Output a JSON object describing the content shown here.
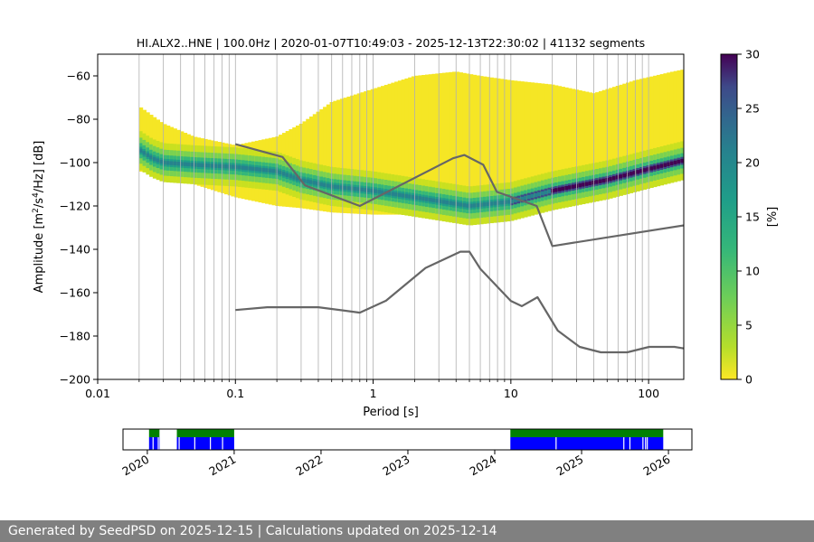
{
  "footer": {
    "text": "Generated by SeedPSD on 2025-12-15 | Calculations updated on 2025-12-14"
  },
  "chart_data": [
    {
      "type": "heatmap",
      "title": "HI.ALX2..HNE | 100.0Hz | 2020-01-07T10:49:03 - 2025-12-13T22:30:02 | 41132 segments",
      "xlabel": "Period [s]",
      "ylabel_parts": [
        "Amplitude [m",
        "2",
        "/s",
        "4",
        "/Hz] [dB]"
      ],
      "xscale": "log",
      "xlim": [
        0.01,
        180
      ],
      "ylim": [
        -200,
        -50
      ],
      "x_ticks": [
        0.01,
        0.1,
        1,
        10,
        100
      ],
      "x_tick_labels": [
        "0.01",
        "0.1",
        "1",
        "10",
        "100"
      ],
      "y_ticks": [
        -200,
        -180,
        -160,
        -140,
        -120,
        -100,
        -80,
        -60
      ],
      "y_tick_labels": [
        "−200",
        "−180",
        "−160",
        "−140",
        "−120",
        "−100",
        "−80",
        "−60"
      ],
      "grid": "vertical lines at log-decade minor ticks",
      "colormap": "viridis_r",
      "colorbar": {
        "label": "[%]",
        "range": [
          0,
          30
        ],
        "ticks": [
          0,
          5,
          10,
          15,
          20,
          25,
          30
        ],
        "tick_labels": [
          "0",
          "5",
          "10",
          "15",
          "20",
          "25",
          "30"
        ]
      },
      "envelope": {
        "periods": [
          0.02,
          0.03,
          0.05,
          0.1,
          0.2,
          0.3,
          0.5,
          1,
          2,
          4,
          6,
          10,
          20,
          40,
          80,
          150,
          180
        ],
        "upper_db": [
          -74,
          -82,
          -88,
          -92,
          -88,
          -82,
          -72,
          -66,
          -60,
          -58,
          -60,
          -62,
          -64,
          -68,
          -62,
          -58,
          -57
        ],
        "lower_db": [
          -104,
          -106,
          -110,
          -116,
          -120,
          -121,
          -123,
          -124,
          -124,
          -123,
          -122,
          -121,
          -118,
          -114,
          -110,
          -108,
          -108
        ]
      },
      "mode_curve": {
        "periods": [
          0.02,
          0.025,
          0.03,
          0.05,
          0.1,
          0.2,
          0.3,
          0.5,
          1,
          2,
          5,
          10,
          20,
          50,
          100,
          180
        ],
        "db": [
          -94,
          -98,
          -100,
          -101,
          -102,
          -104,
          -108,
          -111,
          -113,
          -116,
          -120,
          -118,
          -113,
          -108,
          -103,
          -99
        ]
      },
      "models": [
        {
          "curve": "high noise model",
          "periods": [
            0.1,
            0.22,
            0.32,
            0.8,
            3.8,
            4.6,
            6.3,
            7.9,
            15.4,
            20,
            354
          ],
          "db": [
            -91.5,
            -97.4,
            -110.5,
            -120,
            -98,
            -96.5,
            -101,
            -113.5,
            -120,
            -138.5,
            -126
          ]
        },
        {
          "curve": "low noise model",
          "periods": [
            0.1,
            0.17,
            0.4,
            0.8,
            1.24,
            2.4,
            4.3,
            5,
            6,
            10,
            12,
            15.6,
            21.9,
            31.6,
            45,
            70,
            101,
            154,
            180
          ],
          "db": [
            -168,
            -166.7,
            -166.7,
            -169.2,
            -163.7,
            -148.6,
            -141.1,
            -141.1,
            -149,
            -163.8,
            -166.2,
            -162.1,
            -177.5,
            -185,
            -187.5,
            -187.5,
            -185,
            -185,
            -185.7
          ]
        }
      ]
    },
    {
      "type": "timeline",
      "x_ticks": [
        2020,
        2021,
        2022,
        2023,
        2024,
        2025,
        2026
      ],
      "x_tick_labels": [
        "2020",
        "2021",
        "2022",
        "2023",
        "2024",
        "2025",
        "2026"
      ],
      "xlim": [
        2019.72,
        2026.27
      ],
      "colors": {
        "availability": "#008000",
        "used": "#0000ff"
      },
      "coverage": [
        [
          2020.02,
          2020.14
        ],
        [
          2020.34,
          2021.0
        ],
        [
          2024.18,
          2025.94
        ]
      ],
      "gaps": [
        2020.06,
        2020.12,
        2020.36,
        2020.54,
        2020.72,
        2020.86,
        2024.7,
        2025.48,
        2025.55,
        2025.7,
        2025.73,
        2025.75
      ]
    }
  ]
}
